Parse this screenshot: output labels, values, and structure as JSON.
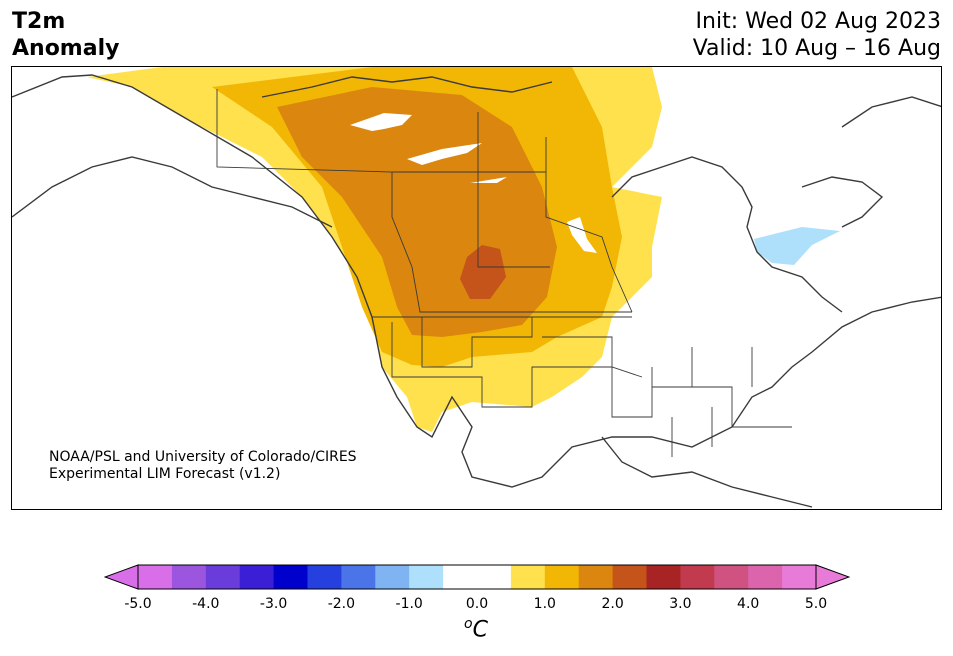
{
  "header": {
    "title_line1": "T2m",
    "title_line2": "Anomaly",
    "init_text": "Init: Wed 02 Aug 2023",
    "valid_text": "Valid: 10 Aug – 16 Aug"
  },
  "credit": {
    "line1": "NOAA/PSL and University of Colorado/CIRES",
    "line2": "Experimental LIM Forecast (v1.2)"
  },
  "colorbar": {
    "unit_base": "C",
    "unit_sup": "o",
    "ticks": [
      "-5.0",
      "-4.0",
      "-3.0",
      "-2.0",
      "-1.0",
      "0.0",
      "1.0",
      "2.0",
      "3.0",
      "4.0",
      "5.0"
    ],
    "colors": [
      "#d96fe8",
      "#9b55de",
      "#6a3ddb",
      "#3a1fd6",
      "#0000cc",
      "#2640e0",
      "#4b74e8",
      "#7fb3f2",
      "#aee0fb",
      "#ffffff",
      "#ffffff",
      "#ffe14d",
      "#f2b705",
      "#db860f",
      "#c4541a",
      "#a82323",
      "#c23a4e",
      "#cf5280",
      "#db64ac",
      "#e87ad8"
    ],
    "under_color": "#d96fe8",
    "over_color": "#e87ad8"
  },
  "map": {
    "region": "North America",
    "anomaly_colors": {
      "band_0_5_1_0": "#ffe14d",
      "band_1_0_1_5": "#f2b705",
      "band_1_5_2_0": "#db860f",
      "band_2_0_2_5": "#c4541a",
      "cool_band": "#aee0fb"
    }
  }
}
